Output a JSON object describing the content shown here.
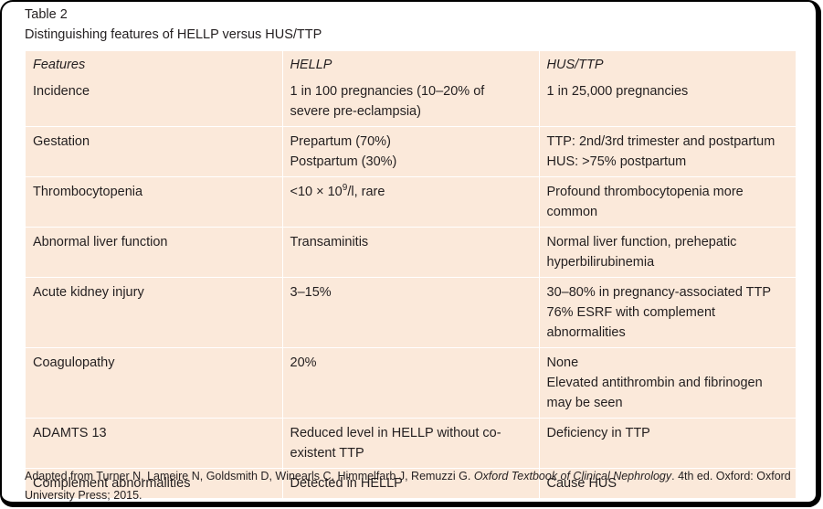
{
  "caption": {
    "label": "Table 2",
    "title": "Distinguishing features of HELLP versus HUS/TTP"
  },
  "table": {
    "headers": [
      "Features",
      "HELLP",
      "HUS/TTP"
    ],
    "rows": [
      {
        "feature": "Incidence",
        "hellp": [
          "1 in 100 pregnancies (10–20% of",
          "severe pre-eclampsia)"
        ],
        "hus_ttp": [
          "1 in 25,000 pregnancies"
        ]
      },
      {
        "feature": "Gestation",
        "hellp": [
          "Prepartum (70%)",
          "Postpartum (30%)"
        ],
        "hus_ttp": [
          "TTP: 2nd/3rd trimester and postpartum",
          "HUS: >75% postpartum"
        ]
      },
      {
        "feature": "Thrombocytopenia",
        "hellp_parts": {
          "pre": "<10 × 10",
          "sup": "9",
          "post": "/l, rare"
        },
        "hus_ttp": [
          "Profound thrombocytopenia more",
          "common"
        ]
      },
      {
        "feature": "Abnormal liver function",
        "hellp": [
          "Transaminitis"
        ],
        "hus_ttp": [
          "Normal liver function, prehepatic",
          "hyperbilirubinemia"
        ]
      },
      {
        "feature": "Acute kidney injury",
        "hellp": [
          "3–15%"
        ],
        "hus_ttp": [
          "30–80% in pregnancy-associated TTP",
          "76% ESRF with complement",
          "abnormalities"
        ]
      },
      {
        "feature": "Coagulopathy",
        "hellp": [
          "20%"
        ],
        "hus_ttp": [
          "None",
          "Elevated antithrombin and fibrinogen",
          "may be seen"
        ]
      },
      {
        "feature": "ADAMTS 13",
        "hellp": [
          "Reduced level in HELLP without co-",
          "existent TTP"
        ],
        "hus_ttp": [
          "Deficiency in TTP"
        ]
      },
      {
        "feature": "Complement abnormalities",
        "hellp": [
          "Detected in HELLP"
        ],
        "hus_ttp": [
          "Cause HUS"
        ]
      }
    ]
  },
  "footnote": {
    "prefix": "Adapted from Turner N, Lameire N, Goldsmith D, Winearls C, Himmelfarb J, Remuzzi G. ",
    "book": "Oxford Textbook of Clinical Nephrology",
    "suffix": ". 4th ed. Oxford: Oxford University Press; 2015."
  },
  "colors": {
    "table_background": "#fbe9da",
    "text": "#231f20",
    "frame_border": "#000000"
  }
}
